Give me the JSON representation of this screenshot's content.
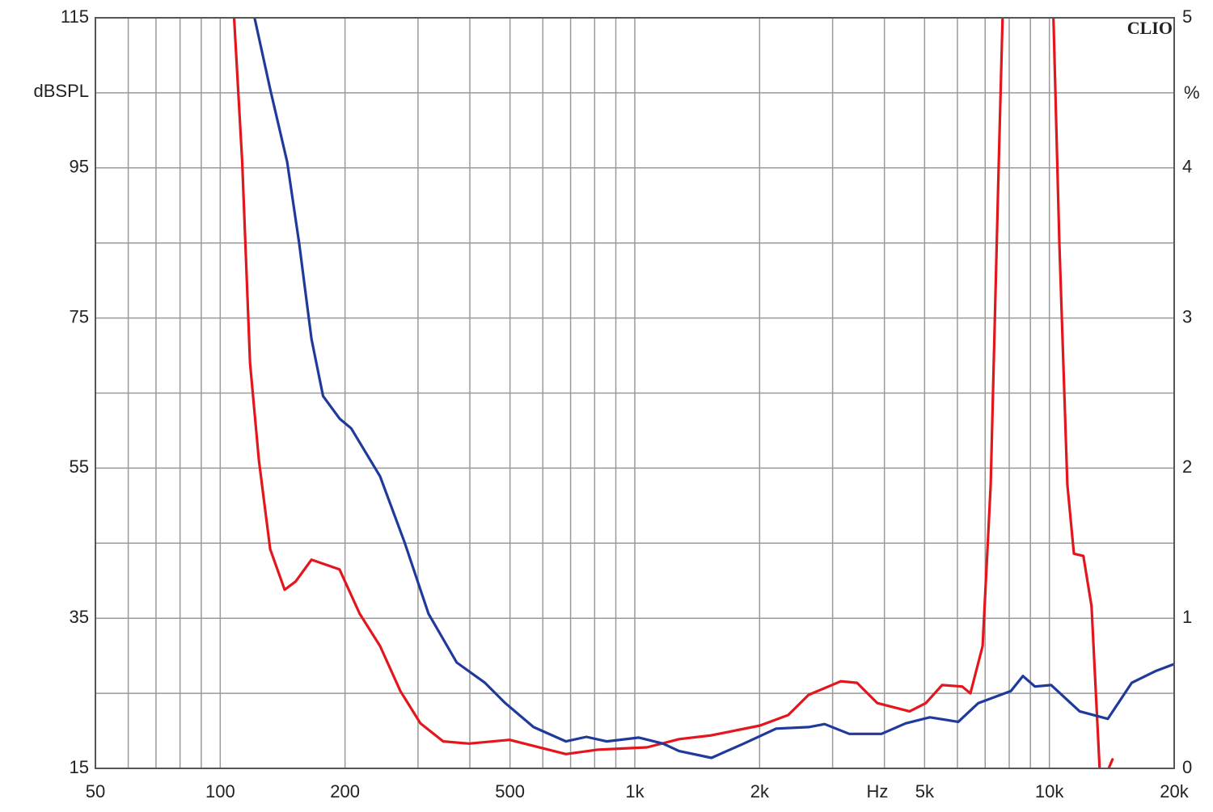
{
  "chart_data": {
    "type": "line",
    "ylabel": "dBSPL",
    "y2label": "%",
    "xlabel": "Hz",
    "annotation": "CLIO",
    "xscale": "log",
    "xlim": [
      50,
      20000
    ],
    "xticks": [
      50,
      100,
      200,
      500,
      {
        "value": 1000,
        "label": "1k"
      },
      {
        "value": 2000,
        "label": "2k"
      },
      {
        "value": 5000,
        "label": "5k"
      },
      {
        "value": 10000,
        "label": "10k"
      },
      {
        "value": 20000,
        "label": "20k"
      }
    ],
    "xminor": [
      60,
      70,
      80,
      90,
      300,
      400,
      600,
      700,
      800,
      900,
      3000,
      4000,
      6000,
      7000,
      8000,
      9000
    ],
    "ylim": [
      15,
      115
    ],
    "yticks": [
      15,
      35,
      55,
      75,
      95,
      115
    ],
    "yminor": [
      25,
      45,
      65,
      85,
      105
    ],
    "y2lim": [
      0,
      5
    ],
    "y2ticks": [
      0,
      1,
      2,
      3,
      4,
      5
    ],
    "grid": true,
    "series": [
      {
        "color": "#e3161e",
        "x": [
          108,
          113,
          118,
          124,
          132,
          143,
          152,
          166,
          194,
          217,
          243,
          272,
          304,
          345,
          398,
          499,
          682,
          816,
          1069,
          1279,
          1531,
          2004,
          2344,
          2625,
          3141,
          3435,
          3845,
          4600,
          5035,
          5510,
          6160,
          6450,
          6900,
          7220,
          7550,
          7710,
          7800,
          10230,
          10570,
          11050,
          11460,
          12080,
          12640,
          13220,
          13500,
          13900,
          14200
        ],
        "values": [
          115,
          95.8,
          69,
          56,
          44.2,
          38.8,
          39.9,
          42.8,
          41.5,
          35.6,
          31.3,
          25.3,
          21,
          18.6,
          18.3,
          18.8,
          16.9,
          17.5,
          17.8,
          18.9,
          19.4,
          20.7,
          22.1,
          24.8,
          26.6,
          26.4,
          23.7,
          22.6,
          23.7,
          26.1,
          25.9,
          25,
          31.3,
          52.8,
          95.8,
          115,
          null,
          115,
          85,
          52.8,
          43.6,
          43.3,
          36.6,
          15,
          null,
          15,
          16.2
        ]
      },
      {
        "color": "#1f3a9a",
        "x": [
          121,
          132,
          145,
          155,
          166,
          177,
          194,
          207,
          243,
          278,
          318,
          372,
          435,
          487,
          570,
          682,
          764,
          855,
          1023,
          1169,
          1279,
          1531,
          1832,
          2193,
          2625,
          2870,
          3290,
          3935,
          4500,
          5150,
          6030,
          6740,
          8075,
          8630,
          9230,
          10100,
          11830,
          13830,
          15800,
          18100,
          20000
        ],
        "values": [
          115,
          105.5,
          95.8,
          85,
          72.2,
          64.6,
          61.6,
          60.3,
          53.9,
          45.2,
          35.6,
          29.1,
          26.4,
          23.7,
          20.5,
          18.6,
          19.2,
          18.6,
          19.1,
          18.3,
          17.3,
          16.4,
          18.3,
          20.3,
          20.5,
          20.9,
          19.6,
          19.6,
          21,
          21.8,
          21.2,
          23.7,
          25.3,
          27.3,
          25.9,
          26.1,
          22.6,
          21.6,
          26.4,
          28,
          28.9
        ]
      }
    ]
  }
}
